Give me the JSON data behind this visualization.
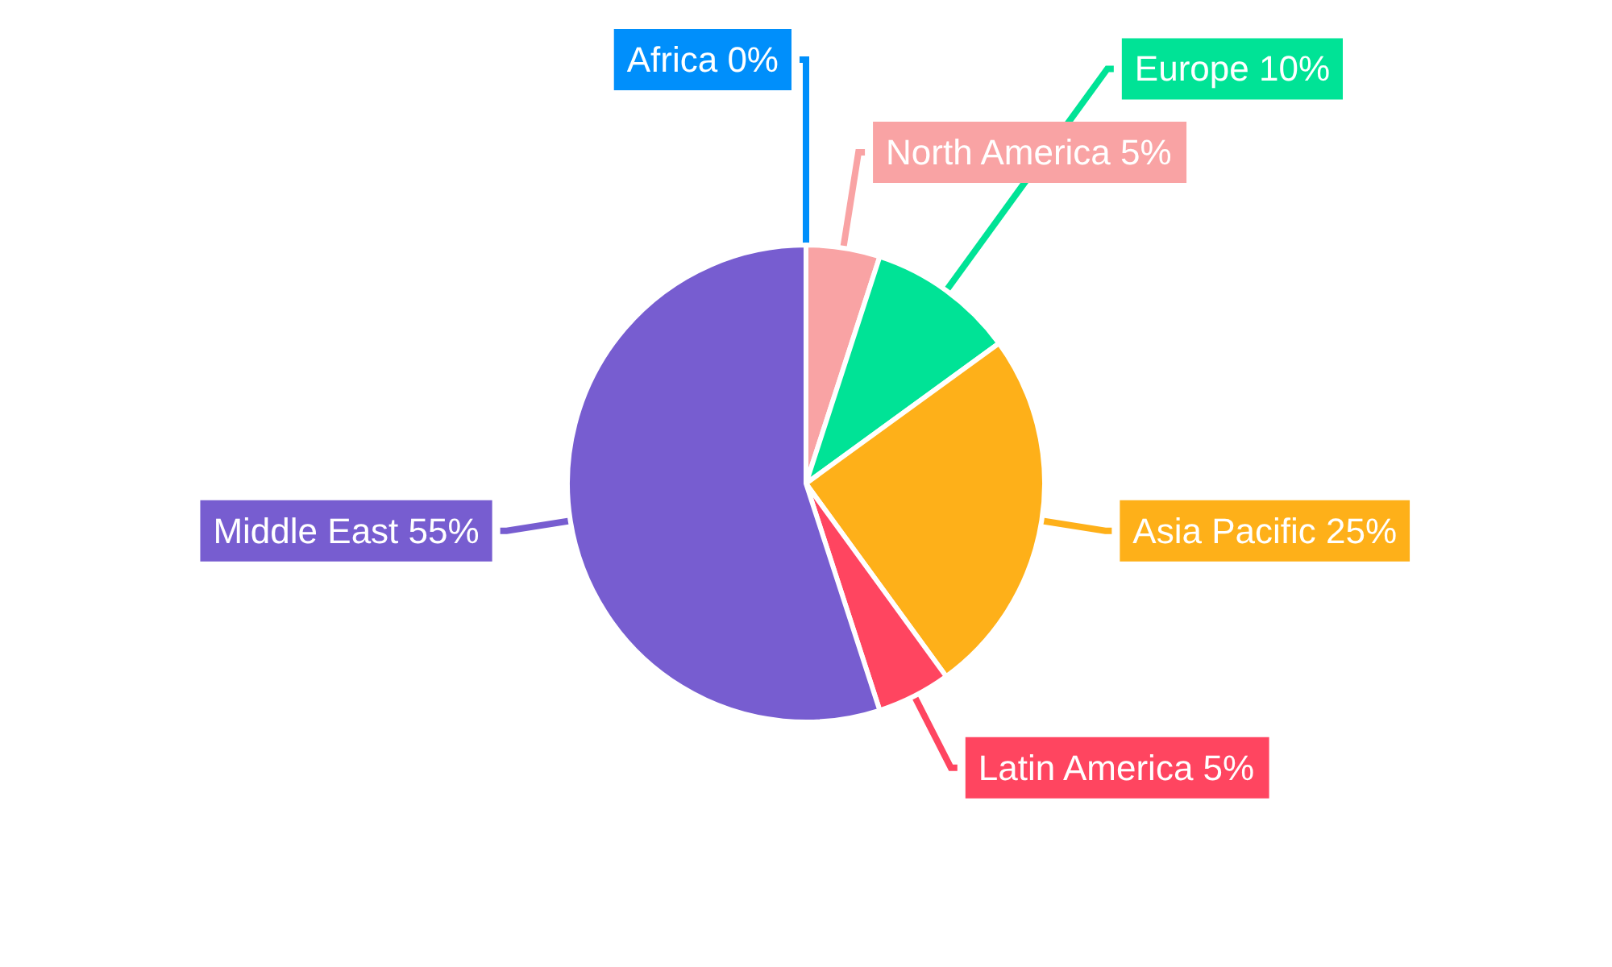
{
  "chart_data": {
    "type": "pie",
    "categories": [
      "Africa",
      "North America",
      "Europe",
      "Asia Pacific",
      "Latin America",
      "Middle East"
    ],
    "values": [
      0,
      5,
      10,
      25,
      5,
      55
    ],
    "value_labels": [
      "0%",
      "5%",
      "10%",
      "25%",
      "5%",
      "55%"
    ],
    "colors": [
      "#008ffb",
      "#f9a3a4",
      "#00e396",
      "#feb019",
      "#ff4560",
      "#775dd0"
    ],
    "legend": false
  }
}
